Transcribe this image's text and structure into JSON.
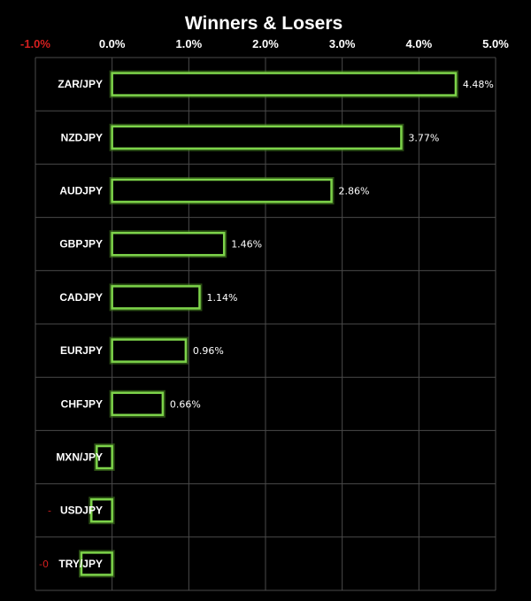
{
  "chart_data": {
    "type": "bar",
    "orientation": "horizontal",
    "title": "Winners & Losers",
    "xlim": [
      -1.0,
      5.0
    ],
    "x_ticks": [
      "-1.0%",
      "0.0%",
      "1.0%",
      "2.0%",
      "3.0%",
      "4.0%",
      "5.0%"
    ],
    "categories": [
      "ZAR/JPY",
      "NZDJPY",
      "AUDJPY",
      "GBPJPY",
      "CADJPY",
      "EURJPY",
      "CHFJPY",
      "MXN/JPY",
      "USDJPY",
      "TRY/JPY"
    ],
    "values": [
      4.48,
      3.77,
      2.86,
      1.46,
      1.14,
      0.96,
      0.66,
      -0.2,
      -0.27,
      -0.4
    ],
    "value_labels": [
      "4.48%",
      "3.77%",
      "2.86%",
      "1.46%",
      "1.14%",
      "0.96%",
      "0.66%",
      "",
      "-",
      "-0"
    ],
    "grid": true,
    "legend": "none",
    "colors": {
      "bar_outline": "#7dd34a",
      "background": "#000000",
      "negative_text": "#d61f1f",
      "grid": "#4a4a4a"
    }
  }
}
